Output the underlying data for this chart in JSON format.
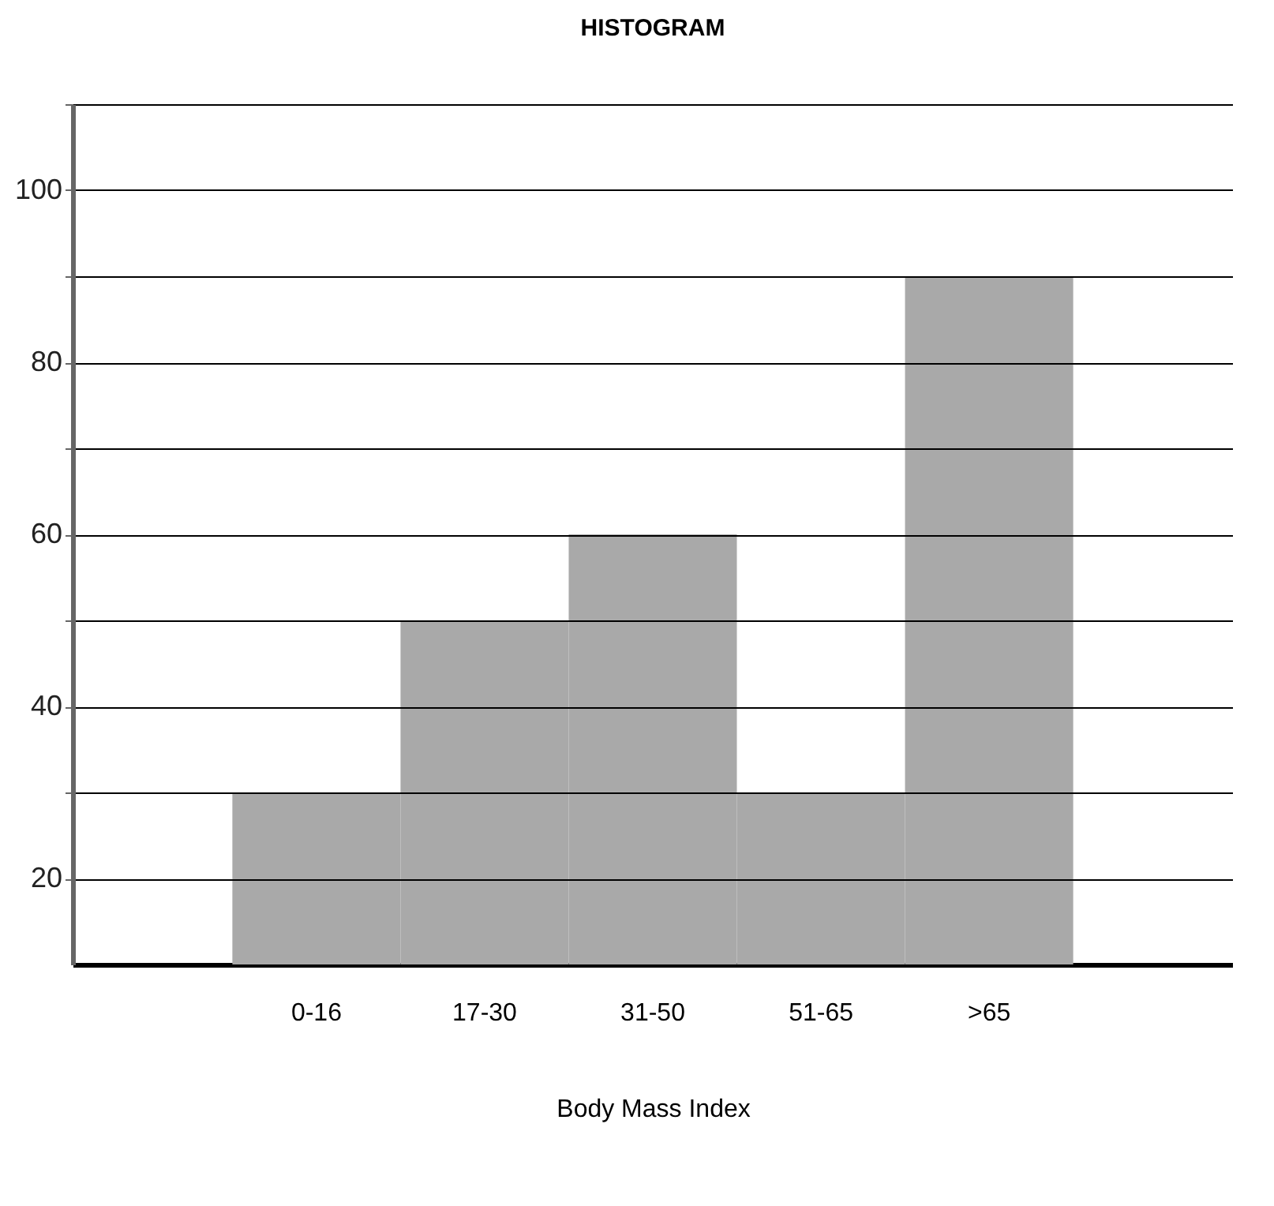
{
  "chart_data": {
    "type": "bar",
    "title": "HISTOGRAM",
    "xlabel": "Body Mass Index",
    "categories": [
      "0-16",
      "17-30",
      "31-50",
      "51-65",
      ">65"
    ],
    "values": [
      30,
      50,
      60,
      30,
      90
    ],
    "color": "#a9a9a9",
    "ylim": [
      10,
      110
    ],
    "yticks": [
      20,
      {
        "value": 30,
        "label": null
      },
      40,
      {
        "value": 50,
        "label": null
      },
      60,
      {
        "value": 70,
        "label": null
      },
      80,
      {
        "value": 90,
        "label": null
      },
      100,
      {
        "value": 110,
        "label": null
      }
    ],
    "grid": true
  }
}
